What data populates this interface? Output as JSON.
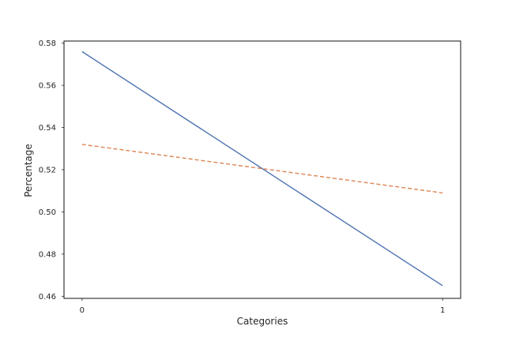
{
  "chart_data": {
    "type": "line",
    "title": "",
    "xlabel": "Categories",
    "ylabel": "Percentage",
    "x": [
      0,
      1
    ],
    "x_tick_labels": [
      "0",
      "1"
    ],
    "xlim": [
      -0.05,
      1.05
    ],
    "ylim": [
      0.459,
      0.581
    ],
    "y_ticks": [
      0.46,
      0.48,
      0.5,
      0.52,
      0.54,
      0.56,
      0.58
    ],
    "y_tick_labels": [
      "0.46",
      "0.48",
      "0.50",
      "0.52",
      "0.54",
      "0.56",
      "0.58"
    ],
    "grid": false,
    "legend": "none",
    "series": [
      {
        "values": [
          0.576,
          0.465
        ],
        "color": "#4c72b0",
        "style": "solid"
      },
      {
        "values": [
          0.532,
          0.509
        ],
        "color": "#dd8452",
        "style": "dashed"
      }
    ]
  }
}
